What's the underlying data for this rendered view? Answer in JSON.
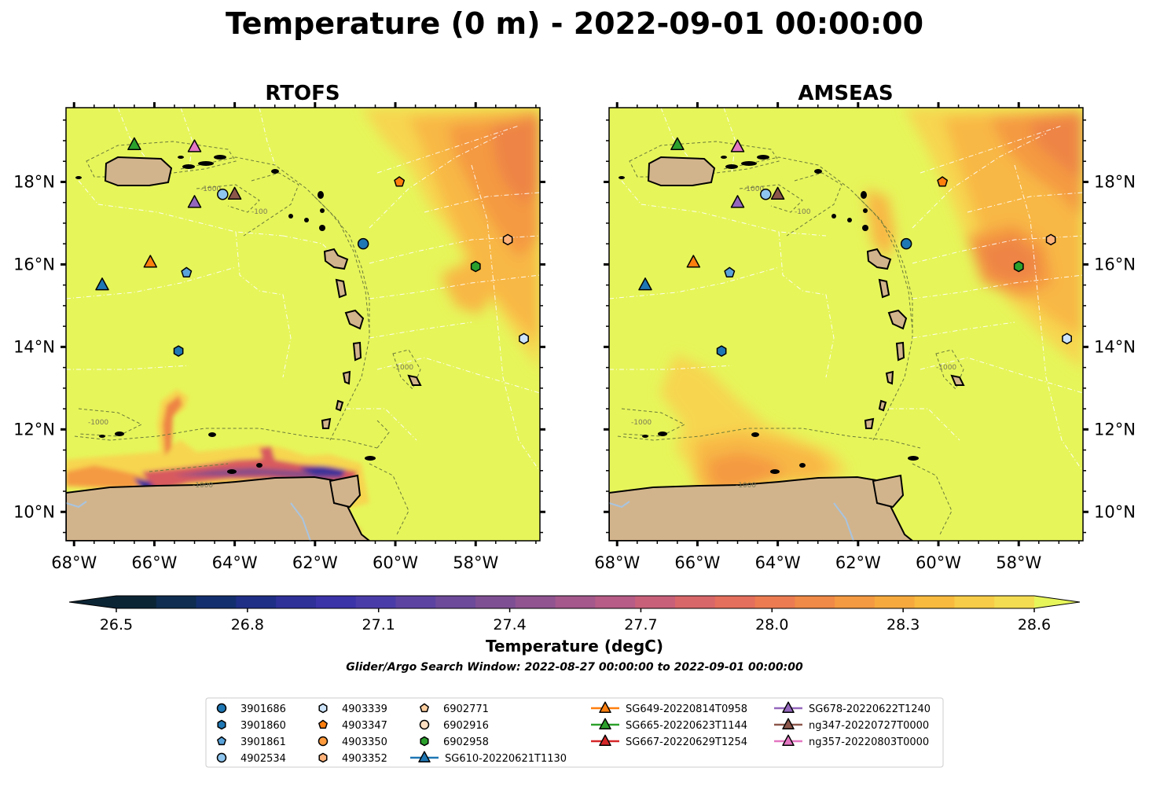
{
  "title": "Temperature (0 m) - 2022-09-01 00:00:00",
  "colors": {
    "sea": "#e6f55a",
    "land": "#d2b48c",
    "lake": "#a8c4e0",
    "warm_1": "#f7d550",
    "warm_2": "#f8b845",
    "warm_3": "#f49a42",
    "warm_4": "#ee8445",
    "cold_1": "#d85a5e",
    "cold_2": "#8a4d86",
    "cold_3": "#3b3099"
  },
  "chart_data": {
    "type": "heatmap",
    "panels": [
      {
        "title": "RTOFS",
        "lon_range": [
          -68.2,
          -56.4
        ],
        "lat_range": [
          9.3,
          19.8
        ]
      },
      {
        "title": "AMSEAS",
        "lon_range": [
          -68.2,
          -56.4
        ],
        "lat_range": [
          9.3,
          19.8
        ]
      }
    ],
    "x_ticks": [
      "68°W",
      "66°W",
      "64°W",
      "62°W",
      "60°W",
      "58°W"
    ],
    "x_tick_values": [
      -68,
      -66,
      -64,
      -62,
      -60,
      -58
    ],
    "y_ticks": [
      "10°N",
      "12°N",
      "14°N",
      "16°N",
      "18°N"
    ],
    "y_tick_values": [
      10,
      12,
      14,
      16,
      18
    ],
    "colorbar": {
      "label": "Temperature (degC)",
      "range": [
        26.5,
        28.6
      ],
      "tick_labels": [
        "26.5",
        "26.8",
        "27.1",
        "27.4",
        "27.7",
        "28.0",
        "28.3",
        "28.6"
      ],
      "tick_values": [
        26.5,
        26.8,
        27.1,
        27.4,
        27.7,
        28.0,
        28.3,
        28.6
      ],
      "colors": [
        "#0b2535",
        "#0e2d50",
        "#142f6e",
        "#1f2f86",
        "#2f3098",
        "#3b33a8",
        "#4a3ca8",
        "#5c43a2",
        "#6d4a9a",
        "#7f4f93",
        "#915491",
        "#a4588c",
        "#b65c86",
        "#c8607a",
        "#d8676a",
        "#e56f5d",
        "#ec7b52",
        "#f08a48",
        "#f49a42",
        "#f6aa3e",
        "#f8bb40",
        "#f7cc48",
        "#f3dc52"
      ],
      "over_color": "#e6f55a"
    },
    "search_window": "Glider/Argo Search Window: 2022-08-27 00:00:00 to 2022-09-01 00:00:00",
    "bathymetry_contour_labels": [
      "-100",
      "-1000"
    ],
    "observations": [
      {
        "id": "3901686",
        "type": "argo",
        "marker": "circle",
        "color": "#1f77b4",
        "lon": -60.8,
        "lat": 16.5
      },
      {
        "id": "3901860",
        "type": "argo",
        "marker": "hexagon",
        "color": "#1f77b4",
        "lon": -65.4,
        "lat": 13.9
      },
      {
        "id": "3901861",
        "type": "argo",
        "marker": "pentagon",
        "color": "#5aa3da",
        "lon": -65.2,
        "lat": 15.8
      },
      {
        "id": "4902534",
        "type": "argo",
        "marker": "circle",
        "color": "#8ec5ee",
        "lon": -64.3,
        "lat": 17.7
      },
      {
        "id": "4903339",
        "type": "argo",
        "marker": "hexagon",
        "color": "#cde4fb",
        "lon": -56.8,
        "lat": 14.2
      },
      {
        "id": "4903347",
        "type": "argo",
        "marker": "pentagon",
        "color": "#ff7f0e",
        "lon": -59.9,
        "lat": 18.0
      },
      {
        "id": "4903350",
        "type": "argo",
        "marker": "circle",
        "color": "#ff9b3d",
        "lon": null,
        "lat": null
      },
      {
        "id": "4903352",
        "type": "argo",
        "marker": "hexagon",
        "color": "#ffb37a",
        "lon": -57.2,
        "lat": 16.6
      },
      {
        "id": "6902771",
        "type": "argo",
        "marker": "pentagon",
        "color": "#ffcfa0",
        "lon": null,
        "lat": null
      },
      {
        "id": "6902916",
        "type": "argo",
        "marker": "circle",
        "color": "#ffdfc2",
        "lon": null,
        "lat": null
      },
      {
        "id": "6902958",
        "type": "argo",
        "marker": "hexagon",
        "color": "#2ca02c",
        "lon": -58.0,
        "lat": 15.95
      },
      {
        "id": "SG610-20220621T1130",
        "type": "glider",
        "marker": "triangle",
        "color": "#1f77b4",
        "lon": -67.3,
        "lat": 15.5
      },
      {
        "id": "SG649-20220814T0958",
        "type": "glider",
        "marker": "triangle",
        "color": "#ff7f0e",
        "lon": -66.1,
        "lat": 16.05
      },
      {
        "id": "SG665-20220623T1144",
        "type": "glider",
        "marker": "triangle",
        "color": "#2ca02c",
        "lon": -66.5,
        "lat": 18.9
      },
      {
        "id": "SG667-20220629T1254",
        "type": "glider",
        "marker": "triangle",
        "color": "#d62728",
        "lon": null,
        "lat": null
      },
      {
        "id": "SG678-20220622T1240",
        "type": "glider",
        "marker": "triangle",
        "color": "#9467bd",
        "lon": -65.0,
        "lat": 17.5
      },
      {
        "id": "ng347-20220727T0000",
        "type": "glider",
        "marker": "triangle",
        "color": "#8c564b",
        "lon": -64.0,
        "lat": 17.7
      },
      {
        "id": "ng357-20220803T0000",
        "type": "glider",
        "marker": "triangle",
        "color": "#e377c2",
        "lon": -65.0,
        "lat": 18.85
      }
    ]
  }
}
